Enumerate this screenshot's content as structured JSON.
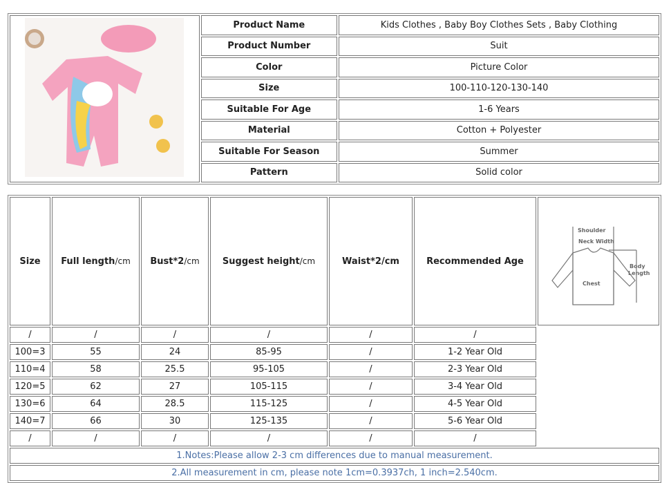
{
  "product_table": {
    "image_icon": "product-photo-pink-unicorn-swimsuit",
    "rows": [
      {
        "label": "Product Name",
        "value": "Kids Clothes , Baby Boy Clothes Sets , Baby Clothing"
      },
      {
        "label": "Product Number",
        "value": "Suit"
      },
      {
        "label": "Color",
        "value": "Picture Color"
      },
      {
        "label": "Size",
        "value": "100-110-120-130-140"
      },
      {
        "label": "Suitable For Age",
        "value": "1-6 Years"
      },
      {
        "label": "Material",
        "value": "Cotton + Polyester"
      },
      {
        "label": "Suitable For Season",
        "value": "Summer"
      },
      {
        "label": "Pattern",
        "value": "Solid color"
      }
    ]
  },
  "size_table": {
    "headers": [
      {
        "main": "Size",
        "unit": ""
      },
      {
        "main": "Full length",
        "unit": "/cm"
      },
      {
        "main": "Bust*2",
        "unit": "/cm"
      },
      {
        "main": "Suggest height",
        "unit": "/cm"
      },
      {
        "main": "Waist*2/cm",
        "unit": ""
      },
      {
        "main": "Recommended Age",
        "unit": ""
      }
    ],
    "rows": [
      [
        "/",
        "/",
        "/",
        "/",
        "/",
        "/"
      ],
      [
        "100=3",
        "55",
        "24",
        "85-95",
        "/",
        "1-2 Year Old"
      ],
      [
        "110=4",
        "58",
        "25.5",
        "95-105",
        "/",
        "2-3 Year Old"
      ],
      [
        "120=5",
        "62",
        "27",
        "105-115",
        "/",
        "3-4 Year Old"
      ],
      [
        "130=6",
        "64",
        "28.5",
        "115-125",
        "/",
        "4-5 Year Old"
      ],
      [
        "140=7",
        "66",
        "30",
        "125-135",
        "/",
        "5-6 Year Old"
      ],
      [
        "/",
        "/",
        "/",
        "/",
        "/",
        "/"
      ]
    ],
    "diagram": {
      "shoulder": "Shoulder",
      "neck_width": "Neck Width",
      "chest": "Chest",
      "body_length_1": "Body",
      "body_length_2": "Length"
    },
    "notes": [
      "1.Notes:Please allow 2-3 cm differences due to manual measurement.",
      "2.All measurement in cm, please note 1cm=0.3937ch, 1 inch=2.540cm."
    ]
  }
}
